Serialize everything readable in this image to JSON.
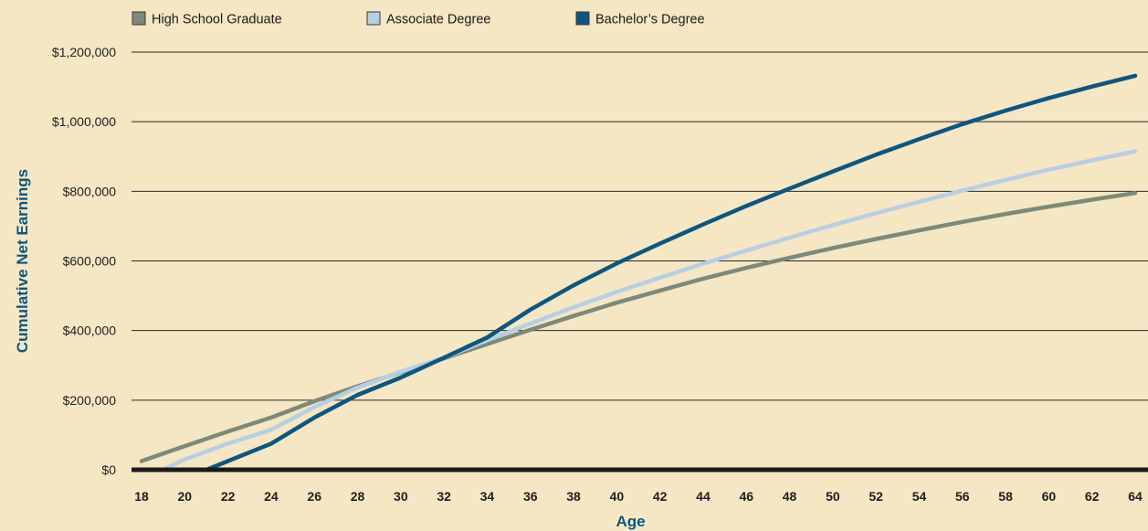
{
  "chart_data": {
    "type": "line",
    "xlabel": "Age",
    "ylabel": "Cumulative Net Earnings",
    "xlim": [
      18,
      64
    ],
    "ylim": [
      0,
      1200000
    ],
    "x_ticks": [
      "18",
      "20",
      "22",
      "24",
      "26",
      "28",
      "30",
      "32",
      "34",
      "36",
      "38",
      "40",
      "42",
      "44",
      "46",
      "48",
      "50",
      "52",
      "54",
      "56",
      "58",
      "60",
      "62",
      "64"
    ],
    "y_ticks": [
      "$0",
      "$200,000",
      "$400,000",
      "$600,000",
      "$800,000",
      "$1,000,000",
      "$1,200,000"
    ],
    "grid": "horizontal",
    "legend_position": "top",
    "series": [
      {
        "name": "High School Graduate",
        "color": "#7d8a7a",
        "x": [
          18,
          20,
          22,
          24,
          26,
          28,
          30,
          32,
          34,
          36,
          38,
          40,
          42,
          44,
          46,
          48,
          50,
          52,
          54,
          56,
          58,
          60,
          62,
          64
        ],
        "y": [
          25000,
          68000,
          110000,
          150000,
          197000,
          240000,
          280000,
          320000,
          361000,
          402000,
          442000,
          480000,
          515000,
          549000,
          580000,
          609000,
          637000,
          663000,
          688000,
          712000,
          735000,
          756000,
          776000,
          795000
        ]
      },
      {
        "name": "Associate Degree",
        "color": "#b8cfe2",
        "x": [
          18,
          19,
          20,
          22,
          24,
          26,
          28,
          30,
          32,
          34,
          36,
          38,
          40,
          42,
          44,
          46,
          48,
          50,
          52,
          54,
          56,
          58,
          60,
          62,
          64
        ],
        "y": [
          0,
          0,
          30000,
          75000,
          115000,
          180000,
          236000,
          282000,
          322000,
          372000,
          420000,
          467000,
          511000,
          552000,
          592000,
          630000,
          667000,
          703000,
          737000,
          770000,
          802000,
          833000,
          862000,
          889000,
          915000
        ]
      },
      {
        "name": "Bachelor’s Degree",
        "color": "#0d567e",
        "x": [
          18,
          20,
          21,
          22,
          24,
          26,
          28,
          30,
          32,
          34,
          36,
          38,
          40,
          42,
          44,
          46,
          48,
          50,
          52,
          54,
          56,
          58,
          60,
          62,
          64
        ],
        "y": [
          0,
          0,
          0,
          25000,
          75000,
          150000,
          215000,
          265000,
          322000,
          380000,
          460000,
          530000,
          593000,
          650000,
          705000,
          758000,
          808000,
          857000,
          905000,
          950000,
          993000,
          1032000,
          1068000,
          1101000,
          1132000
        ]
      }
    ]
  }
}
